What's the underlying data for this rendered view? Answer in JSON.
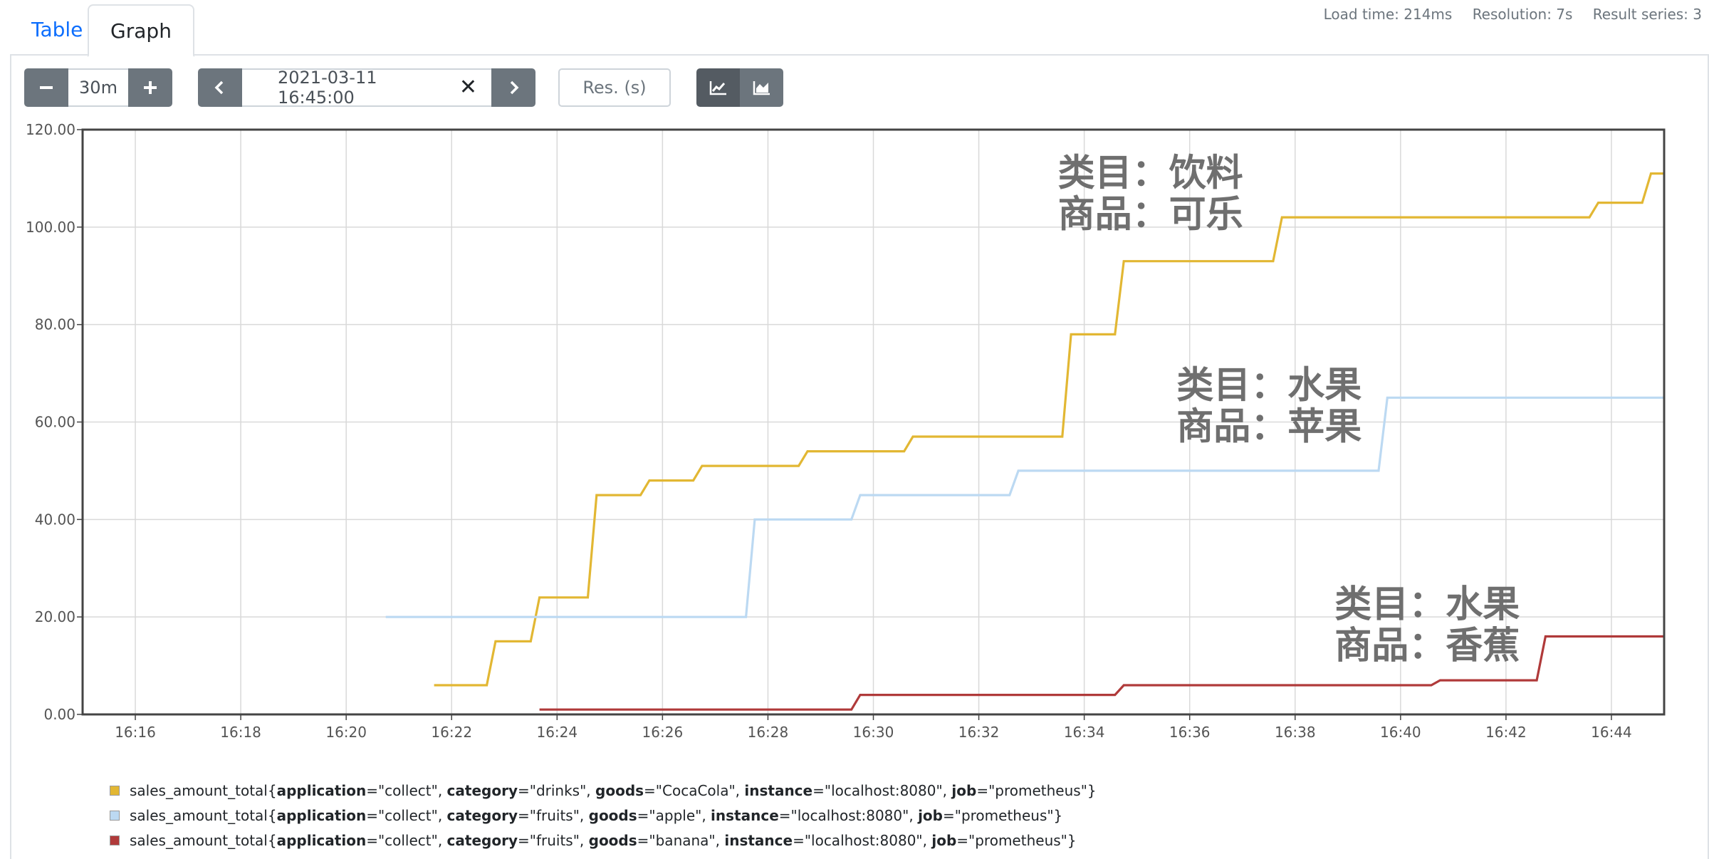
{
  "tabs": {
    "table": "Table",
    "graph": "Graph"
  },
  "stats": {
    "load_time": "Load time: 214ms",
    "resolution": "Resolution: 7s",
    "result_series": "Result series: 3"
  },
  "toolbar": {
    "range_value": "30m",
    "end_time": "2021-03-11 16:45:00",
    "res_placeholder": "Res. (s)",
    "icons": [
      "minus-icon",
      "plus-icon",
      "chevron-left-icon",
      "close-icon",
      "chevron-right-icon",
      "line-chart-icon",
      "area-chart-icon"
    ]
  },
  "annotations": [
    {
      "line1": "类目：饮料",
      "line2": "商品：可乐"
    },
    {
      "line1": "类目：水果",
      "line2": "商品：苹果"
    },
    {
      "line1": "类目：水果",
      "line2": "商品：香蕉"
    }
  ],
  "chart_data": {
    "type": "line",
    "x_unit": "time (HH:MM on 2021-03-11)",
    "xlim": [
      "16:15:00",
      "16:45:00"
    ],
    "ylim": [
      0,
      120
    ],
    "x_ticks": [
      "16:16",
      "16:18",
      "16:20",
      "16:22",
      "16:24",
      "16:26",
      "16:28",
      "16:30",
      "16:32",
      "16:34",
      "16:36",
      "16:38",
      "16:40",
      "16:42",
      "16:44"
    ],
    "y_ticks": [
      "0.00",
      "20.00",
      "40.00",
      "60.00",
      "80.00",
      "100.00",
      "120.00"
    ],
    "grid": true,
    "legend_position": "bottom",
    "series": [
      {
        "legend": [
          {
            "t": "sales_amount_total{"
          },
          {
            "t": "application",
            "b": true
          },
          {
            "t": "=\"collect\", "
          },
          {
            "t": "category",
            "b": true
          },
          {
            "t": "=\"drinks\", "
          },
          {
            "t": "goods",
            "b": true
          },
          {
            "t": "=\"CocaCola\", "
          },
          {
            "t": "instance",
            "b": true
          },
          {
            "t": "=\"localhost:8080\", "
          },
          {
            "t": "job",
            "b": true
          },
          {
            "t": "=\"prometheus\"}"
          }
        ],
        "color": "#e2b733",
        "points": [
          [
            "16:21:40",
            6
          ],
          [
            "16:22:40",
            6
          ],
          [
            "16:22:50",
            15
          ],
          [
            "16:23:30",
            15
          ],
          [
            "16:23:40",
            24
          ],
          [
            "16:24:35",
            24
          ],
          [
            "16:24:45",
            45
          ],
          [
            "16:25:35",
            45
          ],
          [
            "16:25:45",
            48
          ],
          [
            "16:26:35",
            48
          ],
          [
            "16:26:45",
            51
          ],
          [
            "16:28:35",
            51
          ],
          [
            "16:28:45",
            54
          ],
          [
            "16:30:35",
            54
          ],
          [
            "16:30:45",
            57
          ],
          [
            "16:33:35",
            57
          ],
          [
            "16:33:45",
            78
          ],
          [
            "16:34:35",
            78
          ],
          [
            "16:34:45",
            93
          ],
          [
            "16:37:35",
            93
          ],
          [
            "16:37:45",
            102
          ],
          [
            "16:43:35",
            102
          ],
          [
            "16:43:45",
            105
          ],
          [
            "16:44:35",
            105
          ],
          [
            "16:44:45",
            111
          ],
          [
            "16:45:00",
            111
          ]
        ]
      },
      {
        "legend": [
          {
            "t": "sales_amount_total{"
          },
          {
            "t": "application",
            "b": true
          },
          {
            "t": "=\"collect\", "
          },
          {
            "t": "category",
            "b": true
          },
          {
            "t": "=\"fruits\", "
          },
          {
            "t": "goods",
            "b": true
          },
          {
            "t": "=\"apple\", "
          },
          {
            "t": "instance",
            "b": true
          },
          {
            "t": "=\"localhost:8080\", "
          },
          {
            "t": "job",
            "b": true
          },
          {
            "t": "=\"prometheus\"}"
          }
        ],
        "color": "#bcd9f2",
        "points": [
          [
            "16:20:45",
            20
          ],
          [
            "16:27:35",
            20
          ],
          [
            "16:27:45",
            40
          ],
          [
            "16:29:35",
            40
          ],
          [
            "16:29:45",
            45
          ],
          [
            "16:32:35",
            45
          ],
          [
            "16:32:45",
            50
          ],
          [
            "16:39:35",
            50
          ],
          [
            "16:39:45",
            65
          ],
          [
            "16:45:00",
            65
          ]
        ]
      },
      {
        "legend": [
          {
            "t": "sales_amount_total{"
          },
          {
            "t": "application",
            "b": true
          },
          {
            "t": "=\"collect\", "
          },
          {
            "t": "category",
            "b": true
          },
          {
            "t": "=\"fruits\", "
          },
          {
            "t": "goods",
            "b": true
          },
          {
            "t": "=\"banana\", "
          },
          {
            "t": "instance",
            "b": true
          },
          {
            "t": "=\"localhost:8080\", "
          },
          {
            "t": "job",
            "b": true
          },
          {
            "t": "=\"prometheus\"}"
          }
        ],
        "color": "#b03a3a",
        "points": [
          [
            "16:23:40",
            1
          ],
          [
            "16:29:35",
            1
          ],
          [
            "16:29:45",
            4
          ],
          [
            "16:34:35",
            4
          ],
          [
            "16:34:45",
            6
          ],
          [
            "16:40:35",
            6
          ],
          [
            "16:40:45",
            7
          ],
          [
            "16:42:35",
            7
          ],
          [
            "16:42:45",
            16
          ],
          [
            "16:45:00",
            16
          ]
        ]
      }
    ]
  }
}
